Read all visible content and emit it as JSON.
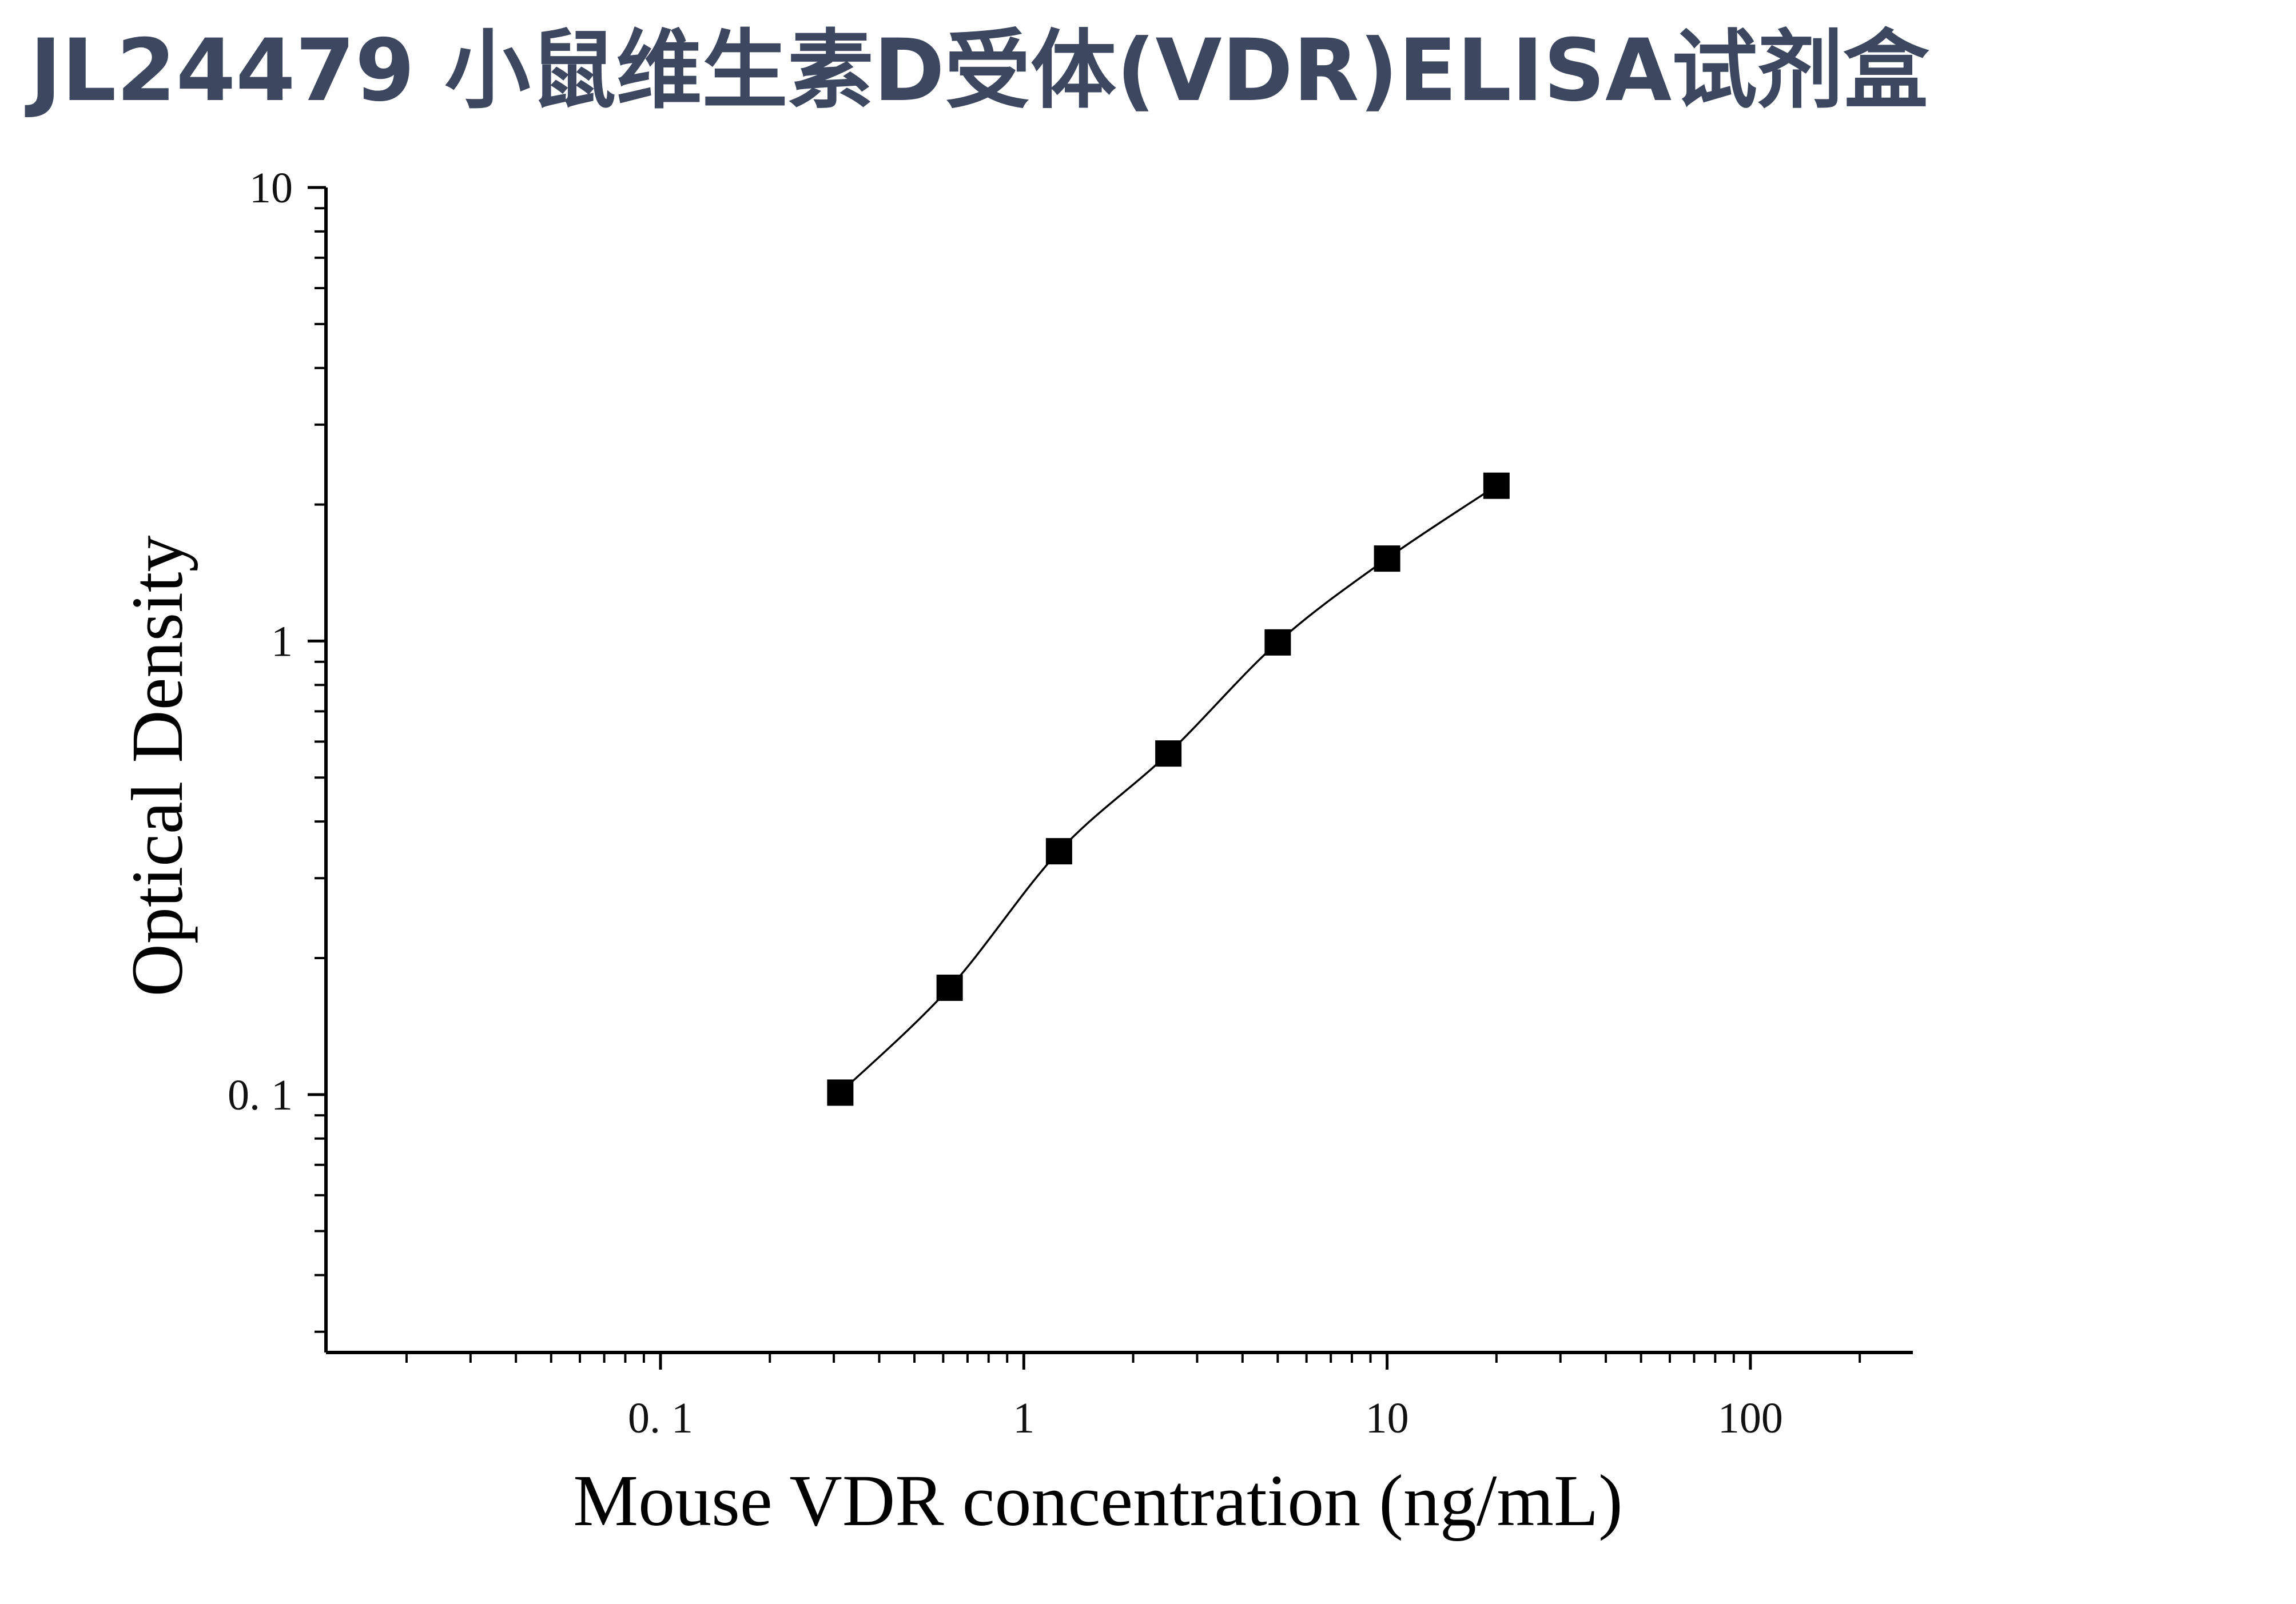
{
  "title": "JL24479 小鼠维生素D受体(VDR)ELISA试剂盒",
  "chart_data": {
    "type": "scatter",
    "title": "JL24479 小鼠维生素D受体(VDR)ELISA试剂盒",
    "xlabel": "Mouse VDR concentration (ng/mL)",
    "ylabel": "Optical Density",
    "x_scale": "log",
    "y_scale": "log",
    "xlim": [
      0.012,
      280
    ],
    "ylim": [
      0.027,
      10
    ],
    "x_ticks": [
      {
        "value": 0.1,
        "label": "0. 1"
      },
      {
        "value": 1,
        "label": "1"
      },
      {
        "value": 10,
        "label": "10"
      },
      {
        "value": 100,
        "label": "100"
      }
    ],
    "y_ticks": [
      {
        "value": 0.1,
        "label": "0. 1"
      },
      {
        "value": 1,
        "label": "1"
      },
      {
        "value": 10,
        "label": "10"
      }
    ],
    "grid": false,
    "legend": "none",
    "marker_color": "#000000",
    "line_color": "#000000",
    "series": [
      {
        "marker": "square",
        "fit_curve": true,
        "points": [
          {
            "x": 0.3125,
            "y": 0.101
          },
          {
            "x": 0.625,
            "y": 0.172
          },
          {
            "x": 1.25,
            "y": 0.344
          },
          {
            "x": 2.5,
            "y": 0.565
          },
          {
            "x": 5,
            "y": 0.993
          },
          {
            "x": 10,
            "y": 1.52
          },
          {
            "x": 20,
            "y": 2.2
          }
        ]
      }
    ]
  }
}
